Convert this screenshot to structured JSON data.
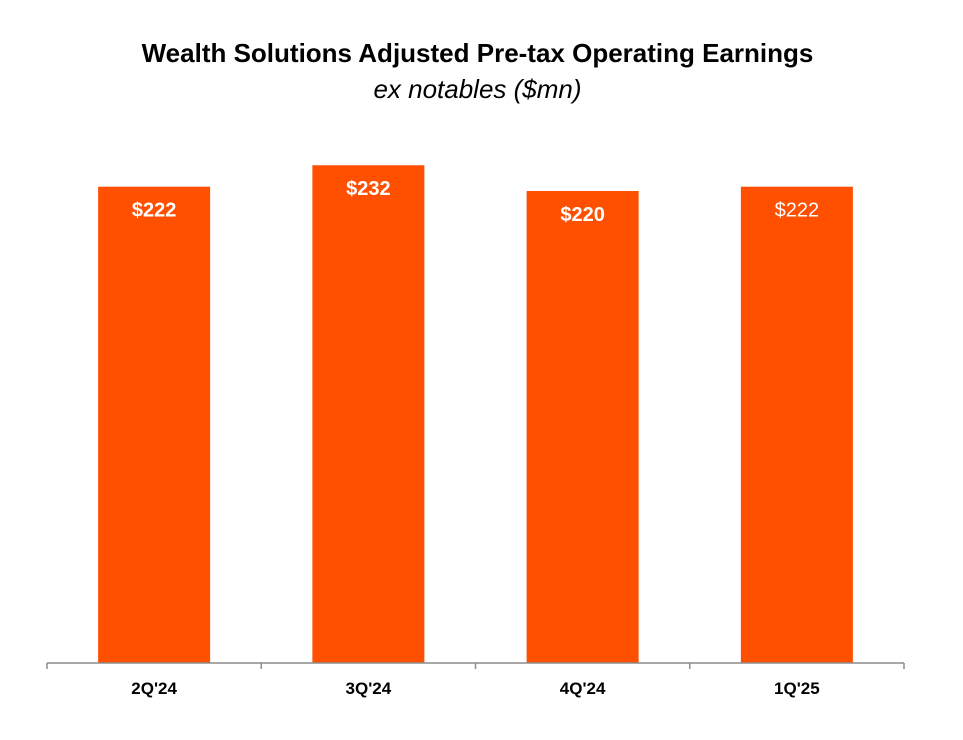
{
  "chart_data": {
    "type": "bar",
    "title": "Wealth Solutions Adjusted Pre-tax Operating Earnings",
    "subtitle": "ex notables ($mn)",
    "categories": [
      "2Q'24",
      "3Q'24",
      "4Q'24",
      "1Q'25"
    ],
    "values": [
      222,
      232,
      220,
      222
    ],
    "data_labels": [
      "$222",
      "$232",
      "$220",
      "$222"
    ],
    "ylim": [
      0,
      240
    ],
    "grid": false,
    "bar_color": "#ff4f00",
    "axis_color": "#8c8c8c"
  }
}
